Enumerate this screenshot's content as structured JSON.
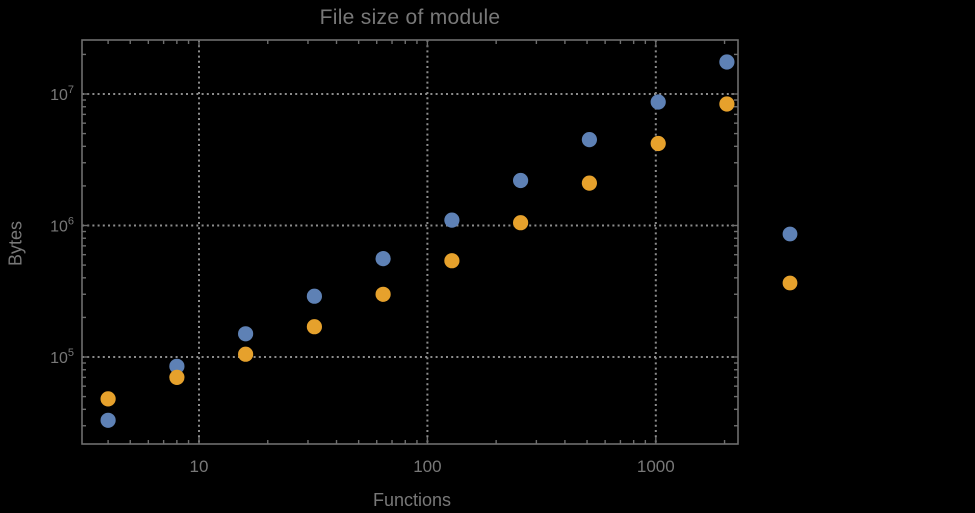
{
  "chart_data": {
    "type": "scatter",
    "title": "File size of module",
    "xlabel": "Functions",
    "ylabel": "Bytes",
    "x_scale": "log",
    "y_scale": "log",
    "xlim": [
      3.08,
      2290
    ],
    "ylim": [
      21800,
      25800000
    ],
    "grid": "dotted gray lines at decades only",
    "x_major_ticks": [
      10,
      100,
      1000
    ],
    "x_tick_labels": [
      "10",
      "100",
      "1000"
    ],
    "y_major_ticks": [
      100000,
      1000000,
      10000000
    ],
    "y_tick_labels": [
      {
        "base": "10",
        "exp": "5",
        "value": 100000
      },
      {
        "base": "10",
        "exp": "6",
        "value": 1000000
      },
      {
        "base": "10",
        "exp": "7",
        "value": 10000000
      }
    ],
    "series": [
      {
        "name": "blue-series",
        "color": "#5e81b5",
        "x": [
          4,
          8,
          16,
          32,
          64,
          128,
          256,
          512,
          1024,
          2048
        ],
        "y": [
          33000,
          85000,
          150000,
          290000,
          560000,
          1100000,
          2200000,
          4500000,
          8700000,
          17500000
        ]
      },
      {
        "name": "orange-series",
        "color": "#e6a12c",
        "x": [
          4,
          8,
          16,
          32,
          64,
          128,
          256,
          512,
          1024,
          2048
        ],
        "y": [
          48000,
          70000,
          105000,
          170000,
          300000,
          540000,
          1050000,
          2100000,
          4200000,
          8400000
        ]
      }
    ],
    "legend": {
      "position": "right of frame, vertically centered",
      "labels_visible": false,
      "entries": [
        {
          "marker_color": "#5e81b5",
          "label": ""
        },
        {
          "marker_color": "#e6a12c",
          "label": ""
        }
      ]
    },
    "colors": {
      "background": "#000000",
      "text": "#787878",
      "frame": "#6e6e6e",
      "grid": "#8c8c8c",
      "series_blue": "#5e81b5",
      "series_orange": "#e6a12c"
    }
  }
}
